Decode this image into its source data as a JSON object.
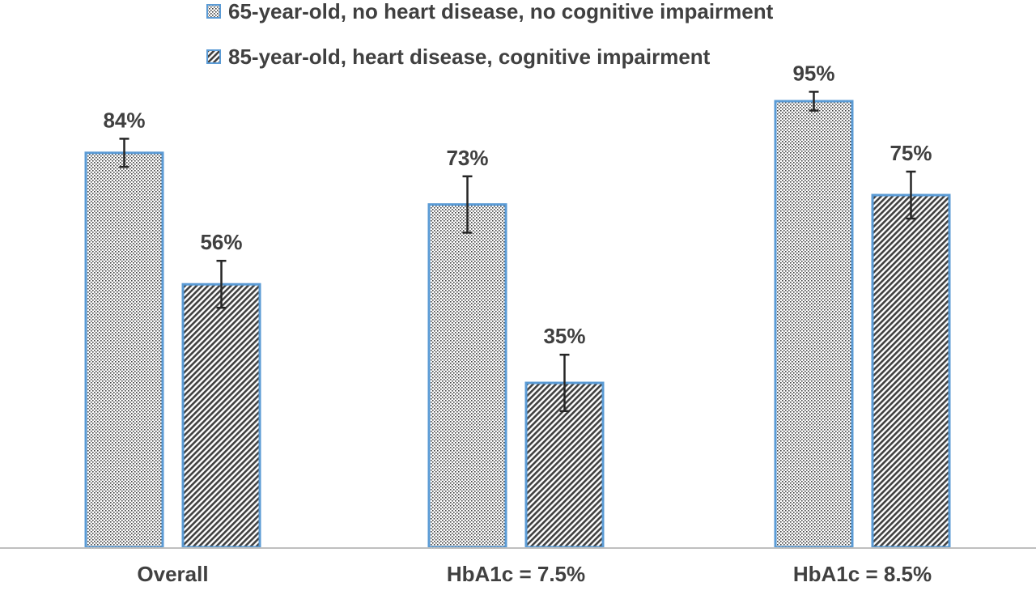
{
  "chart_data": {
    "type": "bar",
    "categories": [
      "Overall",
      "HbA1c = 7.5%",
      "HbA1c = 8.5%"
    ],
    "series": [
      {
        "name": "65-year-old, no heart disease, no cognitive impairment",
        "values": [
          84,
          73,
          95
        ],
        "labels": [
          "84%",
          "73%",
          "95%"
        ],
        "error": [
          [
            81,
            87
          ],
          [
            67,
            79
          ],
          [
            93,
            97
          ]
        ],
        "pattern": "dots"
      },
      {
        "name": "85-year-old, heart disease, cognitive impairment",
        "values": [
          56,
          35,
          75
        ],
        "labels": [
          "56%",
          "35%",
          "75%"
        ],
        "error": [
          [
            51,
            61
          ],
          [
            29,
            41
          ],
          [
            70,
            80
          ]
        ],
        "pattern": "diagonal-hatch"
      }
    ],
    "title": "",
    "xlabel": "",
    "ylabel": "",
    "ylim": [
      0,
      100
    ],
    "grid": false,
    "legend": "top",
    "colors": {
      "bar_border": "#5b9bd5",
      "fill_dark": "#404040",
      "text": "#404040",
      "axis": "#bfbfbf",
      "error_bar": "#262626"
    }
  }
}
